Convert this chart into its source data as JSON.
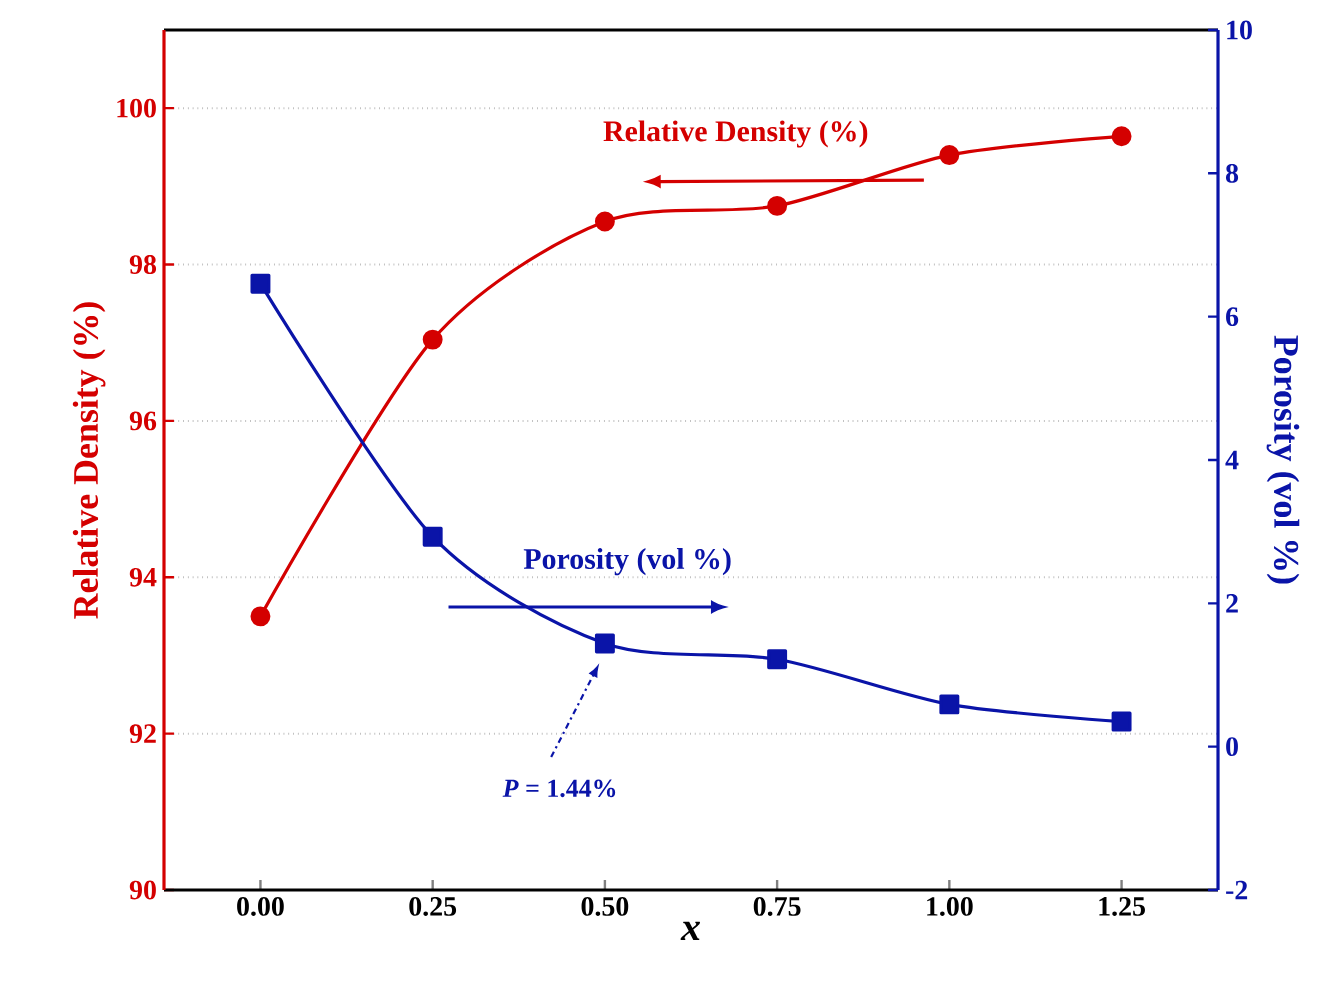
{
  "chart_data": {
    "type": "line",
    "xlabel": "x",
    "ylabel": "Relative Density (%)",
    "y2label": "Porosity (vol %)",
    "xlim": [
      -0.14,
      1.39
    ],
    "xticks": [
      {
        "value": 0,
        "label": "0.00"
      },
      {
        "value": 0.25,
        "label": "0.25"
      },
      {
        "value": 0.5,
        "label": "0.50"
      },
      {
        "value": 0.75,
        "label": "0.75"
      },
      {
        "value": 1.0,
        "label": "1.00"
      },
      {
        "value": 1.25,
        "label": "1.25"
      }
    ],
    "ylim": [
      90,
      101
    ],
    "yticks": [
      90,
      92,
      94,
      96,
      98,
      100
    ],
    "y2lim": [
      -2,
      10
    ],
    "y2ticks": [
      -2,
      0,
      2,
      4,
      6,
      8,
      10
    ],
    "x": [
      0,
      0.25,
      0.5,
      0.75,
      1.0,
      1.25
    ],
    "series": [
      {
        "color": "#d40000",
        "marker": "circle",
        "values": [
          93.5,
          97.04,
          98.55,
          98.75,
          99.4,
          99.64
        ]
      },
      {
        "color": "#0a14a8",
        "marker": "square",
        "axis": "y2",
        "values": [
          6.46,
          2.93,
          1.44,
          1.22,
          0.59,
          0.35
        ]
      }
    ],
    "annotations": [
      "Relative Density (%)",
      "Porosity (vol %)",
      "*P* = 1.44%"
    ],
    "grid": "y"
  }
}
